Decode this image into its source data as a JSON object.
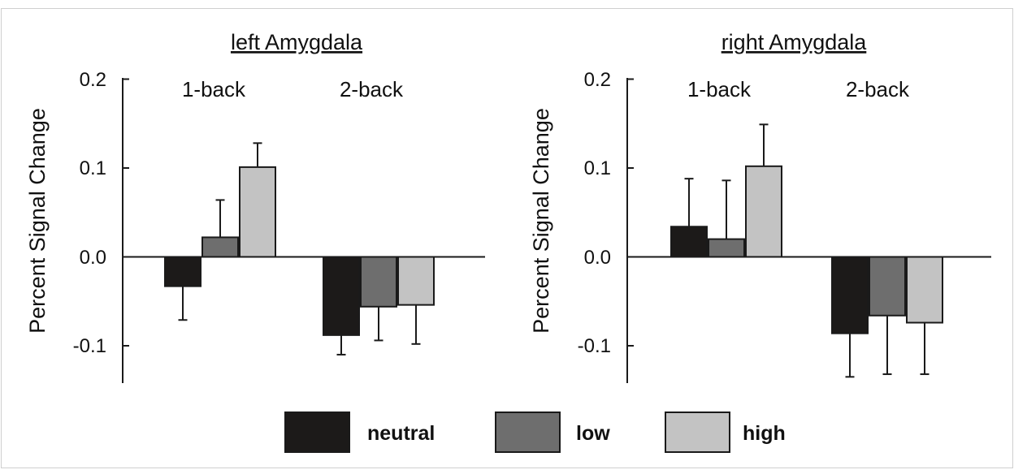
{
  "colors": {
    "neutral": "#1c1a19",
    "low": "#6e6e6e",
    "high": "#c3c3c3",
    "axis": "#1a1a1a",
    "frame": "#cfcfcf"
  },
  "legend": [
    {
      "key": "neutral",
      "label": "neutral"
    },
    {
      "key": "low",
      "label": "low"
    },
    {
      "key": "high",
      "label": "high"
    }
  ],
  "chart_data": [
    {
      "type": "bar",
      "title": "left Amygdala",
      "ylabel": "Percent Signal Change",
      "xlabel": "",
      "ylim": [
        -0.14,
        0.2
      ],
      "yticks": [
        -0.1,
        0.0,
        0.1,
        0.2
      ],
      "ytick_labels": [
        "-0.1",
        "0.0",
        "0.1",
        "0.2"
      ],
      "categories": [
        "1-back",
        "2-back"
      ],
      "series": [
        {
          "name": "neutral",
          "values": [
            -0.033,
            -0.088
          ],
          "errors": [
            0.038,
            0.022
          ]
        },
        {
          "name": "low",
          "values": [
            0.022,
            -0.056
          ],
          "errors": [
            0.042,
            0.038
          ]
        },
        {
          "name": "high",
          "values": [
            0.101,
            -0.054
          ],
          "errors": [
            0.027,
            0.044
          ]
        }
      ],
      "grid": false,
      "legend_position": "bottom"
    },
    {
      "type": "bar",
      "title": "right Amygdala",
      "ylabel": "Percent Signal Change",
      "xlabel": "",
      "ylim": [
        -0.14,
        0.2
      ],
      "yticks": [
        -0.1,
        0.0,
        0.1,
        0.2
      ],
      "ytick_labels": [
        "-0.1",
        "0.0",
        "0.1",
        "0.2"
      ],
      "categories": [
        "1-back",
        "2-back"
      ],
      "series": [
        {
          "name": "neutral",
          "values": [
            0.034,
            -0.086
          ],
          "errors": [
            0.054,
            0.049
          ]
        },
        {
          "name": "low",
          "values": [
            0.02,
            -0.066
          ],
          "errors": [
            0.066,
            0.066
          ]
        },
        {
          "name": "high",
          "values": [
            0.102,
            -0.074
          ],
          "errors": [
            0.047,
            0.058
          ]
        }
      ],
      "grid": false,
      "legend_position": "bottom"
    }
  ]
}
